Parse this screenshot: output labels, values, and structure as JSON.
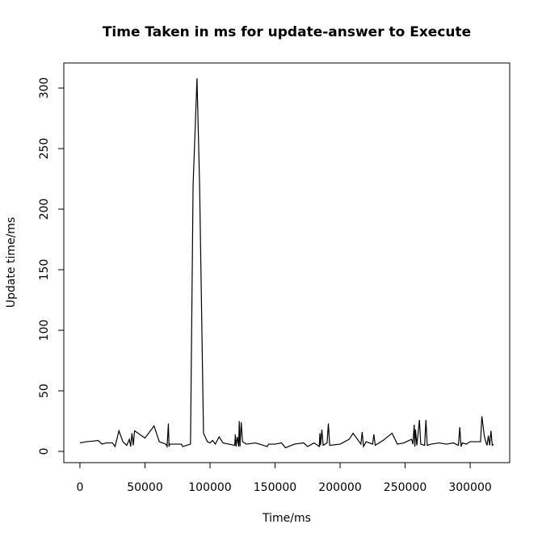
{
  "chart_data": {
    "type": "line",
    "title": "Time Taken in ms for update-answer to Execute",
    "x_label": "Time/ms",
    "y_label": "Update time/ms",
    "color": "#000000",
    "grid": false,
    "x": [
      0,
      5000,
      10000,
      14000,
      17000,
      20000,
      25000,
      27000,
      30000,
      33000,
      36000,
      38000,
      39000,
      40000,
      41000,
      42000,
      50000,
      57000,
      61000,
      66000,
      67000,
      68000,
      68500,
      69000,
      78000,
      79000,
      85000,
      87000,
      90000,
      92000,
      95000,
      98000,
      100000,
      102000,
      104000,
      107000,
      110000,
      119000,
      119500,
      120000,
      121000,
      122000,
      122500,
      123000,
      124000,
      125000,
      128000,
      135000,
      138000,
      144000,
      145000,
      150000,
      155000,
      158000,
      165000,
      172000,
      175000,
      180000,
      184000,
      184500,
      185000,
      186000,
      187000,
      190000,
      191000,
      192000,
      200000,
      207000,
      210000,
      216000,
      217000,
      218000,
      220000,
      225000,
      226000,
      227000,
      233000,
      240000,
      244000,
      249000,
      255000,
      256000,
      257000,
      257500,
      258000,
      259000,
      260000,
      261000,
      262000,
      265000,
      266000,
      267000,
      270000,
      276000,
      282000,
      287000,
      291000,
      292000,
      293000,
      294000,
      297000,
      300000,
      308000,
      309000,
      311000,
      312000,
      313000,
      314000,
      315000,
      316000,
      317000,
      318000
    ],
    "values": [
      7,
      8,
      8.5,
      9,
      6,
      7,
      7,
      4,
      17,
      8,
      5,
      10,
      4,
      15,
      5,
      17,
      11,
      21,
      8,
      6,
      4,
      23,
      4,
      6,
      6,
      4,
      6,
      220,
      308,
      220,
      15,
      8,
      7,
      9,
      6,
      12,
      7,
      5,
      14,
      4,
      12,
      4,
      25,
      4,
      24,
      8,
      6,
      7,
      6,
      4,
      6,
      6,
      7,
      3,
      6,
      7,
      4,
      7,
      4,
      15,
      5,
      18,
      5,
      7,
      23,
      5,
      6,
      10,
      15,
      6,
      16,
      4,
      8,
      6,
      14,
      5,
      9,
      15,
      6,
      7,
      10,
      6,
      22,
      4,
      18,
      5,
      15,
      26,
      6,
      5,
      26,
      5,
      6,
      7,
      6,
      7,
      5,
      20,
      4,
      7,
      6,
      8,
      8,
      29,
      12,
      8,
      5,
      13,
      5,
      17,
      5,
      6
    ],
    "xlim": [
      -12400,
      330400
    ],
    "ylim": [
      -9.3,
      320.7
    ],
    "xticks": [
      0,
      50000,
      100000,
      150000,
      200000,
      250000,
      300000
    ],
    "yticks": [
      0,
      50,
      100,
      150,
      200,
      250,
      300
    ]
  }
}
